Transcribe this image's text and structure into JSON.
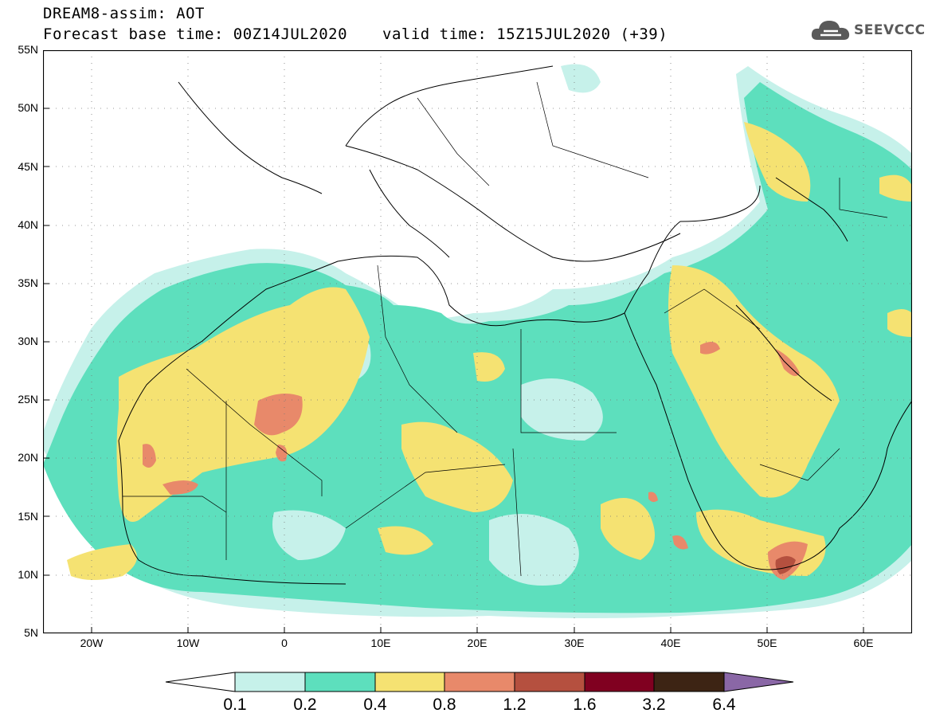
{
  "header": {
    "title_line1": "DREAM8-assim: AOT",
    "title_line2": "Forecast base time: 00Z14JUL2020",
    "valid_time": "valid time: 15Z15JUL2020 (+39)",
    "logo_text": "SEEVCCC",
    "logo_icon": "cloud-icon"
  },
  "map": {
    "projection": "lat-lon",
    "lon_range": [
      -25,
      65
    ],
    "lat_range": [
      5,
      55
    ],
    "y_ticks": [
      "5N",
      "10N",
      "15N",
      "20N",
      "25N",
      "30N",
      "35N",
      "40N",
      "45N",
      "50N",
      "55N"
    ],
    "x_ticks": [
      "20W",
      "10W",
      "0",
      "10E",
      "20E",
      "30E",
      "40E",
      "50E",
      "60E"
    ],
    "gridlines": "dotted"
  },
  "colorbar": {
    "levels": [
      "0.1",
      "0.2",
      "0.4",
      "0.8",
      "1.2",
      "1.6",
      "3.2",
      "6.4"
    ],
    "colors": [
      "#ffffff",
      "#c6f1ea",
      "#5ddfbd",
      "#f5e272",
      "#e8896a",
      "#b5503f",
      "#800020",
      "#3d2414",
      "#8a67a6"
    ]
  }
}
